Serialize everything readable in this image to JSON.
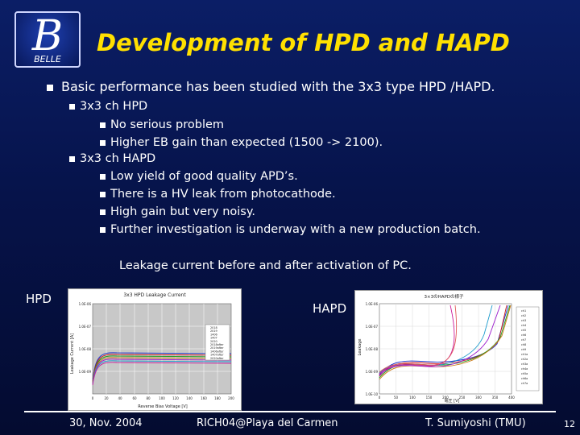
{
  "slide": {
    "title": "Development of HPD and HAPD",
    "logo_text": "BELLE",
    "logo_letter": "B",
    "bullet1": "Basic performance has been studied with the 3x3 type HPD /HAPD.",
    "hpd_heading": "3x3 ch HPD",
    "hpd_items": [
      "No serious problem",
      "Higher EB gain than expected (1500 -> 2100)."
    ],
    "hapd_heading": "3x3 ch HAPD",
    "hapd_items": [
      "Low yield of good quality APD’s.",
      "There is a HV leak from photocathode.",
      "High gain but very noisy.",
      "Further investigation is underway with a new production  batch."
    ],
    "caption": "Leakage current before and after activation of PC.",
    "hpd_label": "HPD",
    "hapd_label": "HAPD",
    "footer_date": "30, Nov. 2004",
    "footer_conf": "RICH04@Playa del Carmen",
    "footer_author": "T. Sumiyoshi (TMU)",
    "page_number": "12"
  },
  "hpd_plot": {
    "title": "3x3 HPD Leakage Current",
    "ylabel": "Leakage Current [A]",
    "xlabel": "Reverse Bias Voltage [V]",
    "yticks": [
      "1.0E-06",
      "1.0E-07",
      "1.0E-08",
      "1.0E-09"
    ],
    "xticks": [
      "0",
      "20",
      "40",
      "60",
      "80",
      "100",
      "120",
      "140",
      "160",
      "180",
      "200"
    ],
    "legend": [
      "2018",
      "2019",
      "1406",
      "1407",
      "2020",
      "2018after",
      "2019after",
      "1406after",
      "1407after",
      "2020after"
    ]
  },
  "hapd_plot": {
    "title": "3×3のHAPDの様子",
    "ylabel": "Leakage",
    "xlabel": "電圧 [V]",
    "yticks": [
      "1.0E-06",
      "1.0E-07",
      "1.0E-08",
      "1.0E-09",
      "1.0E-10"
    ],
    "xticks": [
      "0",
      "50",
      "100",
      "150",
      "200",
      "250",
      "300",
      "350",
      "400"
    ],
    "legend": [
      "ch1",
      "ch2",
      "ch3",
      "ch4",
      "ch5",
      "ch6",
      "ch7",
      "ch8",
      "ch9",
      "ch1a",
      "ch2a",
      "ch3a",
      "ch4a",
      "ch5a",
      "ch6a",
      "ch7a"
    ]
  }
}
